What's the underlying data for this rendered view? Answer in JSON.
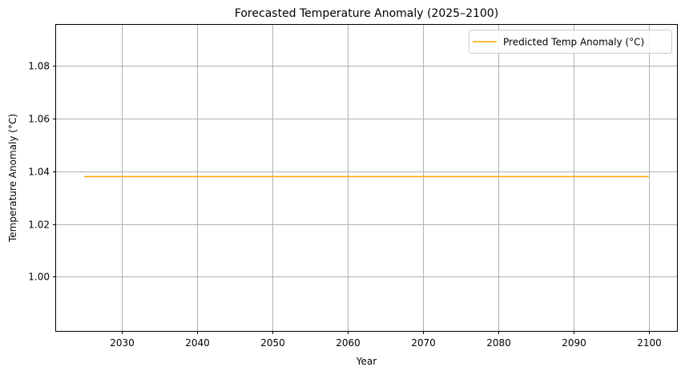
{
  "chart_data": {
    "type": "line",
    "title": "Forecasted Temperature Anomaly (2025–2100)",
    "xlabel": "Year",
    "ylabel": "Temperature Anomaly (°C)",
    "xlim": [
      2021.25,
      2103.75
    ],
    "ylim": [
      0.9795,
      1.0955
    ],
    "xticks": [
      2030,
      2040,
      2050,
      2060,
      2070,
      2080,
      2090,
      2100
    ],
    "yticks": [
      1.0,
      1.02,
      1.04,
      1.06,
      1.08
    ],
    "ytick_labels": [
      "1.00",
      "1.02",
      "1.04",
      "1.06",
      "1.08"
    ],
    "grid": true,
    "legend_position": "upper right",
    "series": [
      {
        "name": "Predicted Temp Anomaly (°C)",
        "color": "#ffa500",
        "x": [
          2025,
          2100
        ],
        "y": [
          1.038,
          1.038
        ]
      }
    ]
  }
}
